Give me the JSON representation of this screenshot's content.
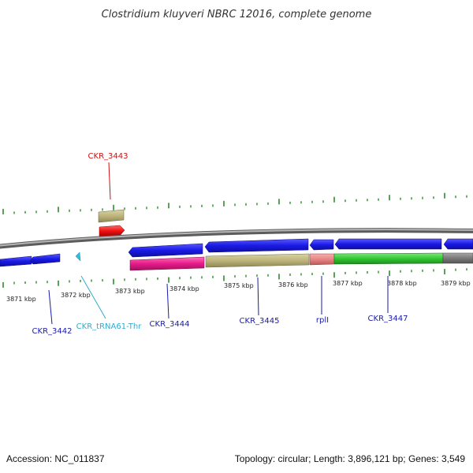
{
  "title": "Clostridium kluyveri NBRC 12016, complete genome",
  "footer": {
    "accession": "Accession: NC_011837",
    "summary": "Topology: circular; Length: 3,896,121 bp; Genes: 3,549"
  },
  "colors": {
    "forward_cds": "#1a1ae6",
    "reverse_cds": "#1a1ae6",
    "backbone": "#808080",
    "tick": "#2e8b2e",
    "label_blue": "#1a1aa8",
    "label_red": "#cc1111",
    "label_cyan": "#33aacc"
  },
  "kbp_labels": [
    "3871 kbp",
    "3872 kbp",
    "3873 kbp",
    "3874 kbp",
    "3875 kbp",
    "3876 kbp",
    "3877 kbp",
    "3878 kbp",
    "3879 kbp"
  ],
  "gene_labels": [
    {
      "text": "CKR_3443",
      "color": "#cc1111"
    },
    {
      "text": "CKR_3442",
      "color": "#1a1aa8"
    },
    {
      "text": "CKR_tRNA61-Thr",
      "color": "#33aacc"
    },
    {
      "text": "CKR_3444",
      "color": "#1a1aa8"
    },
    {
      "text": "CKR_3445",
      "color": "#1a1aa8"
    },
    {
      "text": "rplI",
      "color": "#1a1aa8"
    },
    {
      "text": "CKR_3447",
      "color": "#1a1aa8"
    }
  ]
}
